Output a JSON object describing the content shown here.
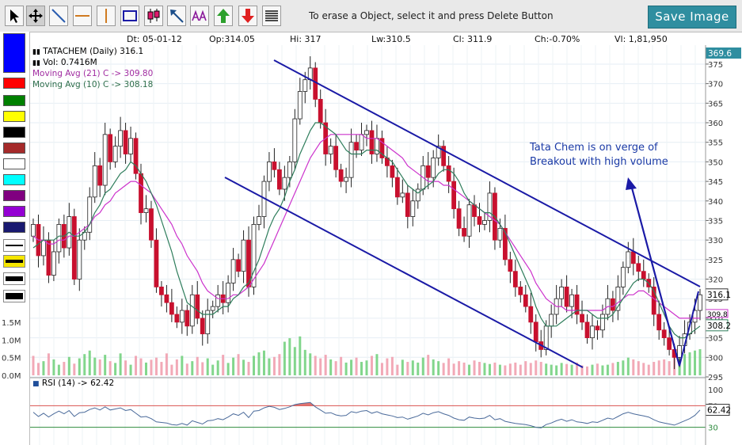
{
  "toolbar": {
    "hint": "To erase a Object, select it and press Delete Button",
    "save_label": "Save Image",
    "tools": [
      "pointer-icon",
      "move-icon",
      "trendline-icon",
      "horizontal-line-icon",
      "vertical-line-icon",
      "rectangle-icon",
      "candle-icon",
      "arrow-icon",
      "fibonacci-icon",
      "buy-arrow-icon",
      "sell-arrow-icon",
      "menu-lines-icon"
    ]
  },
  "palette": {
    "colors": [
      "#0000ff",
      "#ff0000",
      "#008000",
      "#ffff00",
      "#000000",
      "#a52a2a",
      "#ffffff",
      "#00ffff",
      "#800080",
      "#9400d3",
      "#191970"
    ]
  },
  "info": {
    "dt": "Dt: 05-01-12",
    "op": "Op:314.05",
    "hi": "Hi: 317",
    "lw": "Lw:310.5",
    "cl": "Cl: 311.9",
    "ch": "Ch:-0.70%",
    "vl": "Vl: 1,81,950"
  },
  "legend": {
    "symbol": "TATACHEM (Daily) 316.1",
    "vol": "Vol: 0.7416M",
    "ma21": "Moving Avg (21) C -> 309.80",
    "ma10": "Moving Avg (10) C -> 308.18",
    "rsi": "RSI (14) -> 62.42"
  },
  "annotation": "Tata Chem is on verge of\nBreakout with high volume",
  "colors": {
    "up": "#ffffff",
    "down": "#c8102e",
    "candle_outline": "#000000",
    "ma21": "#cc33cc",
    "ma10": "#2e7d5b",
    "trend": "#1a1aa6",
    "volume": "#f09aaa",
    "volume_up": "#6ccf78",
    "rsi_line": "#4a6a9a",
    "rsi_over": "#d9534f",
    "rsi_under": "#2e8b3e"
  },
  "chart_data": [
    {
      "type": "candlestick",
      "y_ticks": [
        "295",
        "300",
        "305",
        "310",
        "315",
        "320",
        "325",
        "330",
        "335",
        "340",
        "345",
        "350",
        "355",
        "360",
        "365",
        "370",
        "375"
      ],
      "ylim": [
        295,
        376
      ],
      "last_price": "316.1",
      "top_label": "369.6",
      "ma_labels": [
        "308.2",
        "309.8"
      ],
      "close": [
        334,
        326,
        330,
        321,
        327,
        334,
        328,
        336,
        320,
        330,
        332,
        341,
        349,
        344,
        357,
        350,
        354,
        358,
        352,
        356,
        347,
        337,
        338,
        330,
        318,
        316,
        314,
        311,
        309,
        312,
        308,
        316,
        310,
        306,
        312,
        313,
        316,
        314,
        319,
        325,
        322,
        330,
        318,
        334,
        336,
        345,
        350,
        348,
        343,
        346,
        350,
        361,
        368,
        371,
        374,
        366,
        360,
        352,
        354,
        348,
        345,
        346,
        355,
        353,
        357,
        358,
        352,
        356,
        351,
        349,
        346,
        341,
        342,
        336,
        340,
        343,
        349,
        346,
        351,
        354,
        349,
        345,
        338,
        333,
        331,
        339,
        336,
        334,
        335,
        342,
        330,
        333,
        325,
        322,
        318,
        316,
        313,
        309,
        304,
        302,
        308,
        311,
        315,
        318,
        313,
        316,
        311,
        309,
        305,
        308,
        307,
        311,
        315,
        312,
        318,
        323,
        327,
        324,
        322,
        320,
        318,
        311,
        307,
        305,
        302,
        300,
        303,
        306,
        309,
        312,
        316
      ],
      "ma21": [
        331,
        330,
        330,
        329,
        329,
        330,
        330,
        331,
        331,
        332,
        333,
        334,
        336,
        337,
        339,
        340,
        342,
        343,
        344,
        345,
        345,
        344,
        343,
        342,
        340,
        338,
        336,
        334,
        331,
        329,
        326,
        324,
        322,
        319,
        317,
        316,
        315,
        315,
        315,
        316,
        316,
        317,
        318,
        320,
        322,
        324,
        327,
        330,
        333,
        336,
        339,
        342,
        345,
        348,
        351,
        353,
        355,
        356,
        357,
        357,
        357,
        357,
        357,
        357,
        357,
        356,
        356,
        356,
        355,
        354,
        353,
        352,
        351,
        349,
        348,
        347,
        346,
        345,
        345,
        345,
        344,
        344,
        343,
        342,
        341,
        340,
        339,
        338,
        337,
        336,
        335,
        334,
        332,
        330,
        328,
        326,
        324,
        322,
        319,
        317,
        315,
        314,
        313,
        313,
        312,
        312,
        312,
        312,
        312,
        312,
        312,
        312,
        313,
        313,
        314,
        315,
        316,
        316,
        317,
        317,
        316,
        315,
        314,
        313,
        312,
        311,
        310,
        310,
        310,
        310,
        310
      ],
      "ma10": [
        328,
        329,
        330,
        330,
        330,
        331,
        331,
        332,
        331,
        331,
        332,
        334,
        337,
        339,
        342,
        343,
        345,
        347,
        348,
        350,
        349,
        347,
        345,
        342,
        339,
        335,
        331,
        327,
        322,
        318,
        314,
        313,
        312,
        311,
        311,
        311,
        312,
        313,
        313,
        315,
        316,
        318,
        319,
        322,
        325,
        329,
        333,
        336,
        338,
        341,
        345,
        348,
        352,
        355,
        358,
        360,
        360,
        359,
        358,
        357,
        355,
        353,
        352,
        352,
        352,
        353,
        353,
        353,
        352,
        351,
        350,
        348,
        346,
        344,
        343,
        342,
        343,
        344,
        345,
        347,
        348,
        348,
        347,
        345,
        342,
        340,
        339,
        338,
        337,
        337,
        336,
        334,
        332,
        329,
        326,
        323,
        320,
        317,
        313,
        310,
        308,
        308,
        308,
        309,
        310,
        311,
        312,
        312,
        312,
        311,
        310,
        310,
        310,
        311,
        313,
        315,
        317,
        319,
        320,
        320,
        319,
        317,
        314,
        311,
        308,
        306,
        305,
        305,
        306,
        307,
        308
      ],
      "volume": [
        0.55,
        0.35,
        0.4,
        0.62,
        0.45,
        0.3,
        0.38,
        0.52,
        0.33,
        0.48,
        0.6,
        0.7,
        0.5,
        0.45,
        0.58,
        0.4,
        0.35,
        0.62,
        0.42,
        0.3,
        0.55,
        0.48,
        0.36,
        0.44,
        0.5,
        0.38,
        0.62,
        0.3,
        0.45,
        0.55,
        0.33,
        0.4,
        0.52,
        0.37,
        0.48,
        0.3,
        0.42,
        0.58,
        0.35,
        0.5,
        0.6,
        0.44,
        0.38,
        0.55,
        0.65,
        0.7,
        0.48,
        0.52,
        0.6,
        0.95,
        1.05,
        0.8,
        1.1,
        0.72,
        0.62,
        0.55,
        0.48,
        0.58,
        0.45,
        0.4,
        0.52,
        0.36,
        0.44,
        0.5,
        0.38,
        0.42,
        0.55,
        0.6,
        0.35,
        0.48,
        0.52,
        0.3,
        0.44,
        0.38,
        0.42,
        0.36,
        0.5,
        0.58,
        0.45,
        0.4,
        0.35,
        0.48,
        0.33,
        0.4,
        0.36,
        0.3,
        0.42,
        0.38,
        0.35,
        0.32,
        0.36,
        0.3,
        0.28,
        0.33,
        0.36,
        0.3,
        0.4,
        0.35,
        0.42,
        0.38,
        0.33,
        0.3,
        0.28,
        0.35,
        0.32,
        0.3,
        0.36,
        0.28,
        0.25,
        0.3,
        0.33,
        0.28,
        0.3,
        0.35,
        0.38,
        0.42,
        0.5,
        0.45,
        0.4,
        0.35,
        0.3,
        0.38,
        0.42,
        0.45,
        0.4,
        0.55,
        0.48,
        0.6,
        0.65,
        0.7,
        0.74
      ],
      "volume_ticks": [
        "0.0M",
        "0.5M",
        "1.0M",
        "1.5M"
      ],
      "rsi": [
        58,
        50,
        56,
        49,
        55,
        60,
        55,
        61,
        50,
        57,
        58,
        63,
        66,
        62,
        68,
        62,
        64,
        66,
        61,
        63,
        56,
        49,
        50,
        46,
        40,
        39,
        38,
        35,
        34,
        37,
        34,
        42,
        39,
        36,
        42,
        43,
        46,
        44,
        49,
        55,
        52,
        58,
        48,
        60,
        61,
        66,
        69,
        67,
        63,
        65,
        68,
        72,
        74,
        75,
        76,
        68,
        62,
        56,
        57,
        53,
        51,
        52,
        59,
        57,
        60,
        61,
        56,
        59,
        55,
        53,
        51,
        48,
        49,
        45,
        48,
        51,
        56,
        53,
        57,
        59,
        55,
        52,
        47,
        44,
        43,
        49,
        47,
        46,
        47,
        52,
        44,
        46,
        41,
        39,
        37,
        36,
        35,
        33,
        30,
        29,
        35,
        38,
        42,
        45,
        41,
        44,
        40,
        39,
        37,
        40,
        39,
        43,
        47,
        45,
        50,
        55,
        58,
        55,
        53,
        51,
        49,
        44,
        40,
        38,
        36,
        34,
        38,
        42,
        46,
        52,
        62
      ],
      "rsi_ticks": [
        "30",
        "70",
        "100"
      ]
    }
  ]
}
